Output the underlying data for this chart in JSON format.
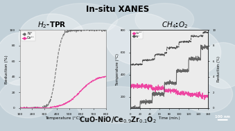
{
  "title": "In-situ XANES",
  "subtitle_left": "H$_2$-TPR",
  "subtitle_right": "CH$_4$:O$_2$",
  "bg_color": "#c2d0d8",
  "plot_bg": "#ececec",
  "plot_edge": "#888888",
  "scale_bar_text": "100 nm",
  "footer_text": "CuO-NiO/Ce",
  "footer_sub1": "0.9",
  "footer_zr": "Zr",
  "footer_sub2": "0.1",
  "footer_o": "O",
  "footer_sub3": "2",
  "left_plot": {
    "xlabel": "Temperature (°C)",
    "ylabel": "Reduction (%)",
    "xlim": [
      100,
      800
    ],
    "ylim": [
      0,
      100
    ],
    "xticks": [
      100,
      200,
      300,
      400,
      500,
      600,
      700,
      800
    ],
    "yticks": [
      0,
      20,
      40,
      60,
      80,
      100
    ],
    "ni_color": "#666666",
    "ce_color": "#ee3399",
    "legend_ni": "Ni°",
    "legend_ce": "Ce³⁺"
  },
  "right_plot": {
    "xlabel": "Time (min.)",
    "ylabel_left": "Temperature (°C)",
    "ylabel_right": "Reduction (%)",
    "xlim": [
      0,
      160
    ],
    "ylim_left": [
      100,
      800
    ],
    "ylim_right": [
      0,
      10
    ],
    "xticks": [
      0,
      20,
      40,
      60,
      80,
      100,
      120,
      140,
      160
    ],
    "yticks_left": [
      200,
      400,
      600,
      800
    ],
    "yticks_right": [
      0,
      2,
      4,
      6,
      8,
      10
    ],
    "ni_color": "#555555",
    "ce_color": "#ee3399",
    "temp_color": "#333333",
    "legend_ce": "Ce³⁺",
    "legend_ni": "Ni°"
  }
}
